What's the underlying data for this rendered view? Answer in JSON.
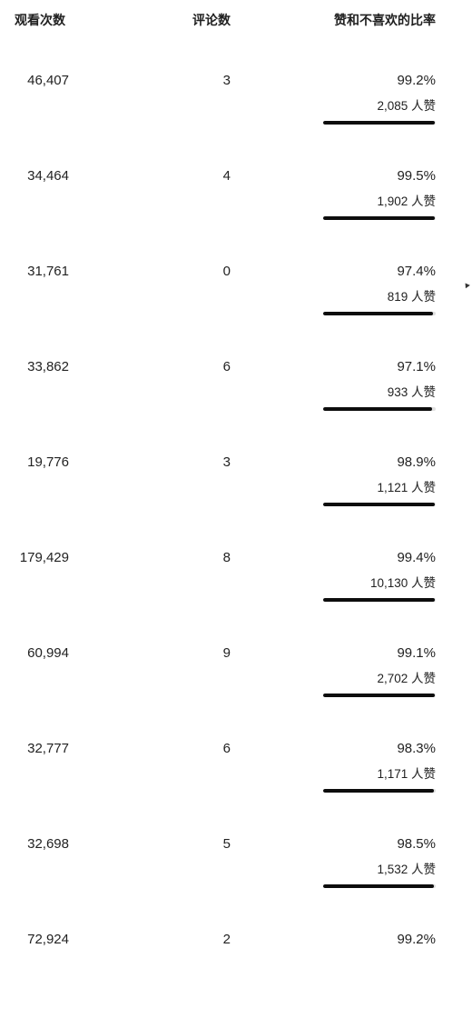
{
  "header": {
    "views": "观看次数",
    "comments": "评论数",
    "ratio": "赞和不喜欢的比率"
  },
  "rows": [
    {
      "views": "46,407",
      "comments": "3",
      "ratio": "99.2%",
      "likes": "2,085 人赞",
      "ratio_value": 0.992
    },
    {
      "views": "34,464",
      "comments": "4",
      "ratio": "99.5%",
      "likes": "1,902 人赞",
      "ratio_value": 0.995
    },
    {
      "views": "31,761",
      "comments": "0",
      "ratio": "97.4%",
      "likes": "819 人赞",
      "ratio_value": 0.974
    },
    {
      "views": "33,862",
      "comments": "6",
      "ratio": "97.1%",
      "likes": "933 人赞",
      "ratio_value": 0.971
    },
    {
      "views": "19,776",
      "comments": "3",
      "ratio": "98.9%",
      "likes": "1,121 人赞",
      "ratio_value": 0.989
    },
    {
      "views": "179,429",
      "comments": "8",
      "ratio": "99.4%",
      "likes": "10,130 人赞",
      "ratio_value": 0.994
    },
    {
      "views": "60,994",
      "comments": "9",
      "ratio": "99.1%",
      "likes": "2,702 人赞",
      "ratio_value": 0.991
    },
    {
      "views": "32,777",
      "comments": "6",
      "ratio": "98.3%",
      "likes": "1,171 人赞",
      "ratio_value": 0.983
    },
    {
      "views": "32,698",
      "comments": "5",
      "ratio": "98.5%",
      "likes": "1,532 人赞",
      "ratio_value": 0.985
    },
    {
      "views": "72,924",
      "comments": "2",
      "ratio": "99.2%",
      "likes": "",
      "ratio_value": 0.992
    }
  ],
  "colors": {
    "bar_fill": "#0d0d0d",
    "bar_track": "#e0e0e0",
    "text": "#222222"
  }
}
